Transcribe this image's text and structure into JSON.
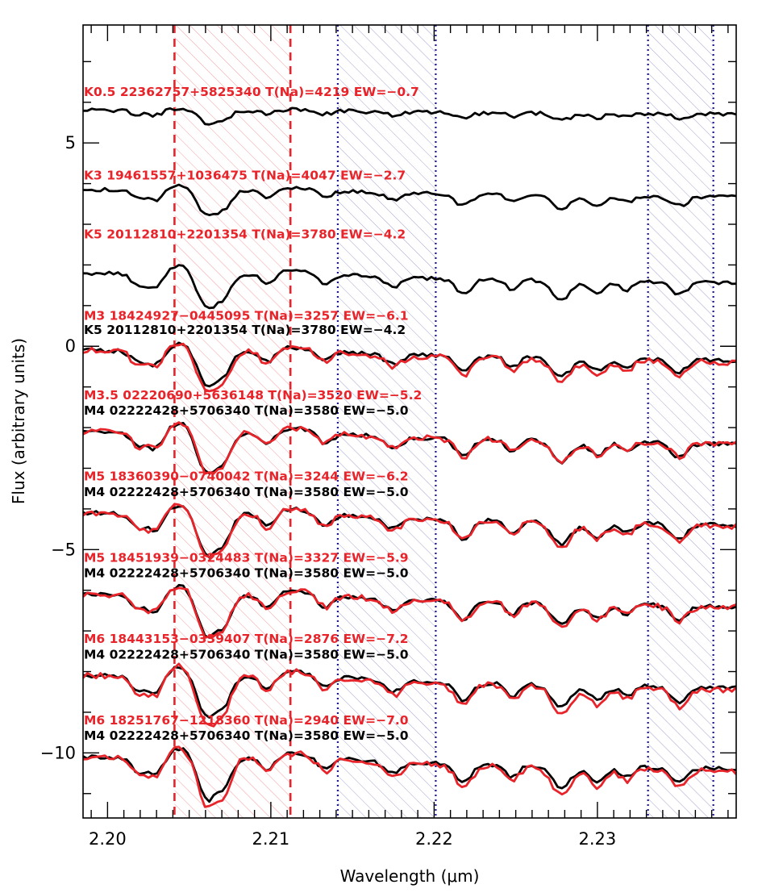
{
  "colors": {
    "target": "#e8242b",
    "reference": "#000000",
    "na_band": "#e8242b",
    "ca_band": "#1c1c8c"
  },
  "chart_data": {
    "type": "line",
    "xlabel": "Wavelength (μm)",
    "ylabel": "Flux (arbitrary units)",
    "xlim": [
      2.1985,
      2.2385
    ],
    "ylim": [
      -11.6,
      7.9
    ],
    "xticks": [
      2.2,
      2.21,
      2.22,
      2.23
    ],
    "xtick_labels": [
      "2.20",
      "2.21",
      "2.22",
      "2.23"
    ],
    "yticks": [
      5,
      0,
      -5,
      -10
    ],
    "ytick_labels": [
      "5",
      "0",
      "−5",
      "−10"
    ],
    "grid": false,
    "shaded_regions": [
      {
        "band": "Na",
        "x": [
          2.2041,
          2.2112
        ],
        "color": "#e8242b",
        "edge_style": "dashed"
      },
      {
        "band": "Ca1",
        "x": [
          2.2141,
          2.2201
        ],
        "color": "#1c1c8c",
        "edge_style": "dotted"
      },
      {
        "band": "Ca2",
        "x": [
          2.2331,
          2.2371
        ],
        "color": "#1c1c8c",
        "edge_style": "dotted"
      }
    ],
    "series": [
      {
        "label": "K0.5 22362757+5825340 T(Na)=4219 EW=−0.7",
        "color": "#e8242b",
        "offset": 5.8,
        "label_y": 6.15,
        "amp": 0.35,
        "has_reference": false
      },
      {
        "label": "K3 19461557+1036475 T(Na)=4047 EW=−2.7",
        "color": "#e8242b",
        "offset": 3.85,
        "label_y": 4.1,
        "amp": 0.75,
        "has_reference": false
      },
      {
        "label": "K5 20112810+2201354 T(Na)=3780 EW=−4.2",
        "color": "#e8242b",
        "offset": 1.8,
        "label_y": 2.65,
        "amp": 1.0,
        "has_reference": false
      },
      {
        "label": "M3 18424927−0445095 T(Na)=3257 EW=−6.1",
        "ref_label": "K5 20112810+2201354 T(Na)=3780 EW=−4.2",
        "color": "#e8242b",
        "offset": -0.1,
        "label_y": 0.65,
        "ref_label_y": 0.3,
        "amp": 1.2,
        "ref_amp": 1.0,
        "has_reference": true
      },
      {
        "label": "M3.5 02220690+5636148 T(Na)=3520 EW=−5.2",
        "ref_label": "M4 02222428+5706340 T(Na)=3580 EW=−5.0",
        "color": "#e8242b",
        "offset": -2.1,
        "label_y": -1.3,
        "ref_label_y": -1.68,
        "amp": 1.2,
        "ref_amp": 1.2,
        "has_reference": true
      },
      {
        "label": "M5 18360390−0740042 T(Na)=3244 EW=−6.2",
        "ref_label": "M4 02222428+5706340 T(Na)=3580 EW=−5.0",
        "color": "#e8242b",
        "offset": -4.1,
        "label_y": -3.3,
        "ref_label_y": -3.68,
        "amp": 1.3,
        "ref_amp": 1.2,
        "has_reference": true
      },
      {
        "label": "M5 18451939−0324483 T(Na)=3327 EW=−5.9",
        "ref_label": "M4 02222428+5706340 T(Na)=3580 EW=−5.0",
        "color": "#e8242b",
        "offset": -6.1,
        "label_y": -5.3,
        "ref_label_y": -5.68,
        "amp": 1.25,
        "ref_amp": 1.2,
        "has_reference": true
      },
      {
        "label": "M6 18443153−0339407 T(Na)=2876 EW=−7.2",
        "ref_label": "M4 02222428+5706340 T(Na)=3580 EW=−5.0",
        "color": "#e8242b",
        "offset": -8.1,
        "label_y": -7.3,
        "ref_label_y": -7.68,
        "amp": 1.45,
        "ref_amp": 1.2,
        "has_reference": true
      },
      {
        "label": "M6 18251767−1218360 T(Na)=2940 EW=−7.0",
        "ref_label": "M4 02222428+5706340 T(Na)=3580 EW=−5.0",
        "color": "#e8242b",
        "offset": -10.1,
        "label_y": -9.3,
        "ref_label_y": -9.68,
        "amp": 1.45,
        "ref_amp": 1.2,
        "has_reference": true
      }
    ]
  }
}
